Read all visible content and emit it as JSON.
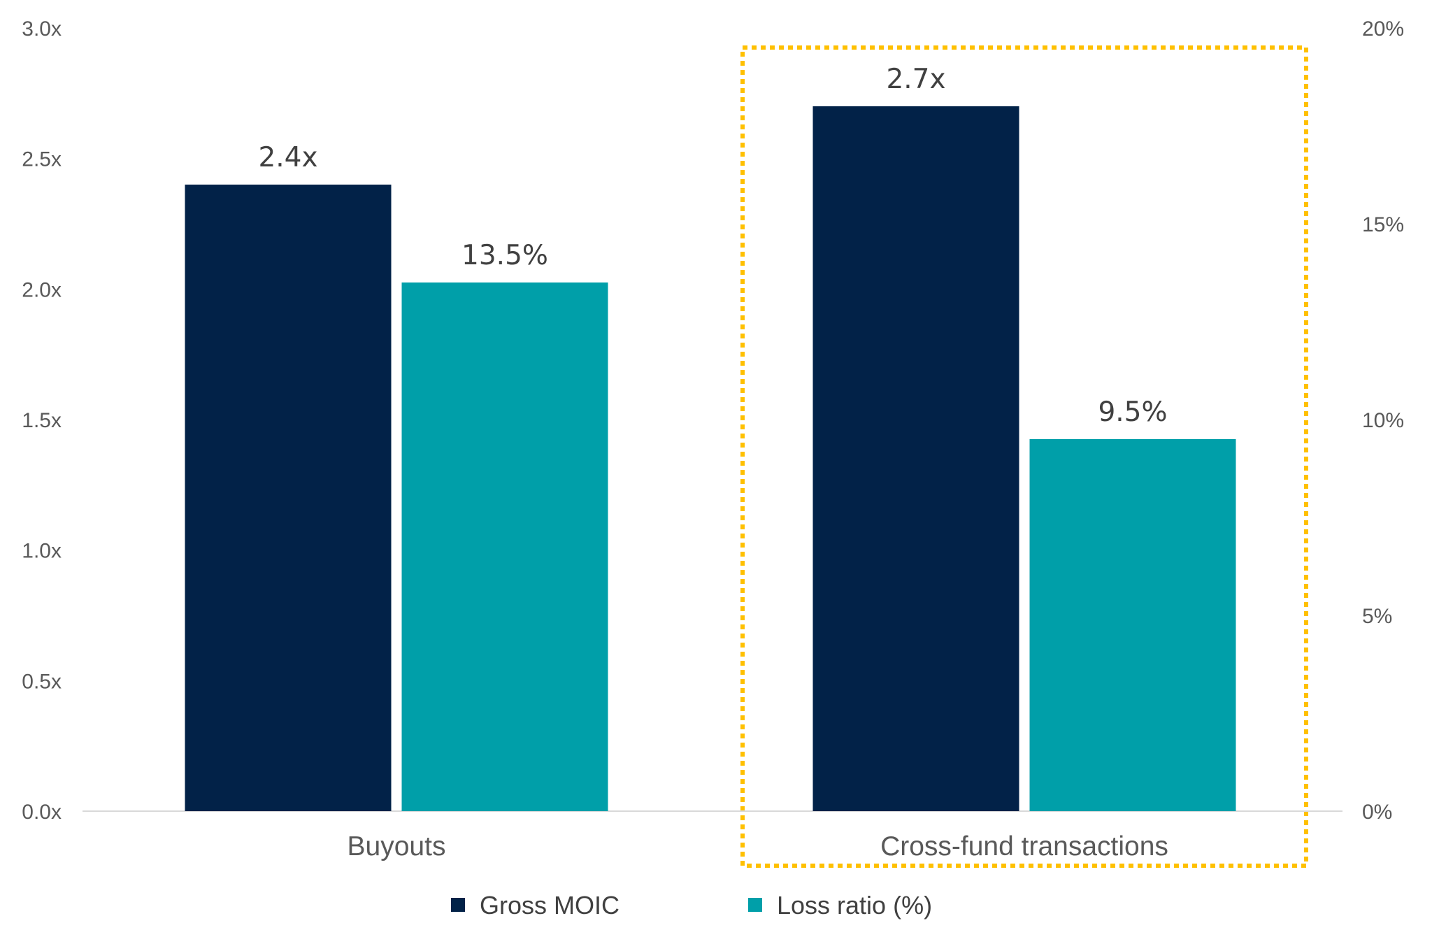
{
  "chart_data": {
    "type": "bar",
    "categories": [
      "Buyouts",
      "Cross-fund transactions"
    ],
    "series": [
      {
        "name": "Gross MOIC",
        "axis": "left",
        "values": [
          2.4,
          2.7
        ],
        "labels": [
          "2.4x",
          "2.7x"
        ],
        "color": "#022248"
      },
      {
        "name": "Loss ratio (%)",
        "axis": "right",
        "values": [
          13.5,
          9.5
        ],
        "labels": [
          "13.5%",
          "9.5%"
        ],
        "color": "#009FA9"
      }
    ],
    "y_left": {
      "lim": [
        0,
        3.0
      ],
      "ticks": [
        0,
        0.5,
        1.0,
        1.5,
        2.0,
        2.5,
        3.0
      ],
      "tick_labels": [
        "0.0x",
        "0.5x",
        "1.0x",
        "1.5x",
        "2.0x",
        "2.5x",
        "3.0x"
      ]
    },
    "y_right": {
      "lim": [
        0,
        20
      ],
      "ticks": [
        0,
        5,
        10,
        15,
        20
      ],
      "tick_labels": [
        "0%",
        "5%",
        "10%",
        "15%",
        "20%"
      ]
    },
    "title": "",
    "xlabel": "",
    "ylabel": "",
    "grid": false,
    "legend_position": "bottom-center",
    "highlight": {
      "category": "Cross-fund transactions",
      "style": "dotted",
      "color": "#FFC000"
    }
  }
}
